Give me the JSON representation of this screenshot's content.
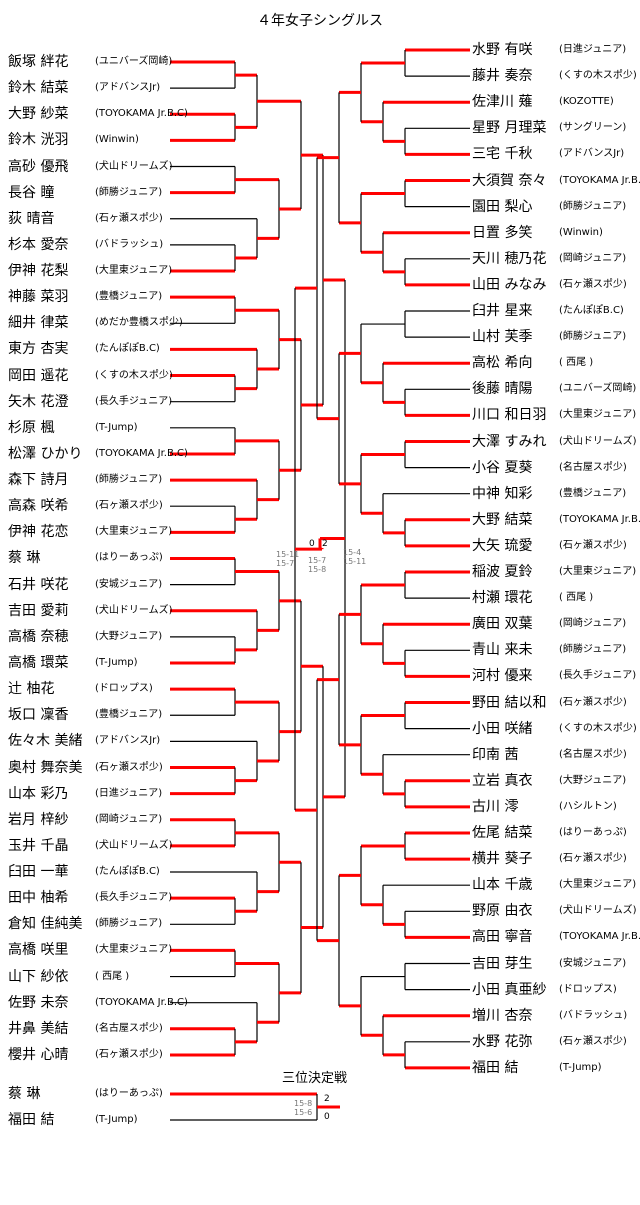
{
  "title": "４年女子シングルス",
  "colors": {
    "winner_line": "#ff0000",
    "line": "#000000"
  },
  "left": [
    {
      "name": "飯塚 絆花",
      "club": "(ユニバーズ岡崎)",
      "red": true
    },
    {
      "name": "鈴木 結菜",
      "club": "(アドバンスJr)",
      "red": false
    },
    {
      "name": "大野 紗菜",
      "club": "(TOYOKAMA Jr.B.C)",
      "red": true
    },
    {
      "name": "鈴木 洸羽",
      "club": "(Winwin)",
      "red": true
    },
    {
      "name": "高砂 優飛",
      "club": "(犬山ドリームズ)",
      "red": false
    },
    {
      "name": "長谷 瞳",
      "club": "(師勝ジュニア)",
      "red": true
    },
    {
      "name": "荻 晴音",
      "club": "(石ヶ瀬スポ少)",
      "red": false
    },
    {
      "name": "杉本 愛奈",
      "club": "(バドラッシュ)",
      "red": false
    },
    {
      "name": "伊神 花梨",
      "club": "(大里東ジュニア)",
      "red": true
    },
    {
      "name": "神藤 菜羽",
      "club": "(豊橋ジュニア)",
      "red": true
    },
    {
      "name": "細井 律菜",
      "club": "(めだか豊橋スポ少)",
      "red": false
    },
    {
      "name": "東方 杏実",
      "club": "(たんぽぽB.C)",
      "red": true
    },
    {
      "name": "岡田 遥花",
      "club": "(くすの木スポ少)",
      "red": true
    },
    {
      "name": "矢木 花澄",
      "club": "(長久手ジュニア)",
      "red": false
    },
    {
      "name": "杉原 楓",
      "club": "(T-Jump)",
      "red": false
    },
    {
      "name": "松澤 ひかり",
      "club": "(TOYOKAMA Jr.B.C)",
      "red": true
    },
    {
      "name": "森下 詩月",
      "club": "(師勝ジュニア)",
      "red": true
    },
    {
      "name": "高森 咲希",
      "club": "(石ヶ瀬スポ少)",
      "red": false
    },
    {
      "name": "伊神 花恋",
      "club": "(大里東ジュニア)",
      "red": true
    },
    {
      "name": "蔡 琳",
      "club": "(はりーあっぷ)",
      "red": true
    },
    {
      "name": "石井 咲花",
      "club": "(安城ジュニア)",
      "red": false
    },
    {
      "name": "吉田 愛莉",
      "club": "(犬山ドリームズ)",
      "red": true
    },
    {
      "name": "高橋 奈穂",
      "club": "(大野ジュニア)",
      "red": false
    },
    {
      "name": "高橋 環菜",
      "club": "(T-Jump)",
      "red": true
    },
    {
      "name": "辻 柚花",
      "club": "(ドロップス)",
      "red": true
    },
    {
      "name": "坂口 凜香",
      "club": "(豊橋ジュニア)",
      "red": false
    },
    {
      "name": "佐々木 美緒",
      "club": "(アドバンスJr)",
      "red": false
    },
    {
      "name": "奥村 舞奈美",
      "club": "(石ヶ瀬スポ少)",
      "red": true
    },
    {
      "name": "山本 彩乃",
      "club": "(日進ジュニア)",
      "red": true
    },
    {
      "name": "岩月 梓紗",
      "club": "(岡崎ジュニア)",
      "red": true
    },
    {
      "name": "玉井 千晶",
      "club": "(犬山ドリームズ)",
      "red": true
    },
    {
      "name": "臼田 一華",
      "club": "(たんぽぽB.C)",
      "red": false
    },
    {
      "name": "田中 柚希",
      "club": "(長久手ジュニア)",
      "red": true
    },
    {
      "name": "倉知 佳純美",
      "club": "(師勝ジュニア)",
      "red": false
    },
    {
      "name": "高橋 咲里",
      "club": "(大里東ジュニア)",
      "red": true
    },
    {
      "name": "山下 紗依",
      "club": "( 西尾 )",
      "red": false
    },
    {
      "name": "佐野 未奈",
      "club": "(TOYOKAMA Jr.B.C)",
      "red": false
    },
    {
      "name": "井鼻 美結",
      "club": "(名古屋スポ少)",
      "red": true
    },
    {
      "name": "櫻井 心晴",
      "club": "(石ヶ瀬スポ少)",
      "red": true
    }
  ],
  "right": [
    {
      "name": "水野 有咲",
      "club": "(日進ジュニア)",
      "red": true
    },
    {
      "name": "藤井 奏奈",
      "club": "(くすの木スポ少)",
      "red": false
    },
    {
      "name": "佐津川 薙",
      "club": "(KOZOTTE)",
      "red": true
    },
    {
      "name": "星野 月理菜",
      "club": "(サングリーン)",
      "red": false
    },
    {
      "name": "三宅 千秋",
      "club": "(アドバンスJr)",
      "red": true
    },
    {
      "name": "大須賀 奈々",
      "club": "(TOYOKAMA Jr.B.C)",
      "red": true
    },
    {
      "name": "園田 梨心",
      "club": "(師勝ジュニア)",
      "red": false
    },
    {
      "name": "日置 多笑",
      "club": "(Winwin)",
      "red": true
    },
    {
      "name": "天川 穂乃花",
      "club": "(岡崎ジュニア)",
      "red": false
    },
    {
      "name": "山田 みなみ",
      "club": "(石ヶ瀬スポ少)",
      "red": true
    },
    {
      "name": "臼井 星来",
      "club": "(たんぽぽB.C)",
      "red": false
    },
    {
      "name": "山村 芙季",
      "club": "(師勝ジュニア)",
      "red": false
    },
    {
      "name": "高松 希向",
      "club": "( 西尾 )",
      "red": true
    },
    {
      "name": "後藤 晴陽",
      "club": "(ユニバーズ岡崎)",
      "red": false
    },
    {
      "name": "川口 和日羽",
      "club": "(大里東ジュニア)",
      "red": true
    },
    {
      "name": "大澤 すみれ",
      "club": "(犬山ドリームズ)",
      "red": true
    },
    {
      "name": "小谷 夏葵",
      "club": "(名古屋スポ少)",
      "red": false
    },
    {
      "name": "中神 知彩",
      "club": "(豊橋ジュニア)",
      "red": false
    },
    {
      "name": "大野 結菜",
      "club": "(TOYOKAMA Jr.B.C)",
      "red": true
    },
    {
      "name": "大矢 琉愛",
      "club": "(石ヶ瀬スポ少)",
      "red": true
    },
    {
      "name": "稲波 夏鈴",
      "club": "(大里東ジュニア)",
      "red": true
    },
    {
      "name": "村瀬 環花",
      "club": "( 西尾 )",
      "red": false
    },
    {
      "name": "廣田 双葉",
      "club": "(岡崎ジュニア)",
      "red": true
    },
    {
      "name": "青山 来未",
      "club": "(師勝ジュニア)",
      "red": false
    },
    {
      "name": "河村 優来",
      "club": "(長久手ジュニア)",
      "red": true
    },
    {
      "name": "野田 結以和",
      "club": "(石ヶ瀬スポ少)",
      "red": true
    },
    {
      "name": "小田 咲緒",
      "club": "(くすの木スポ少)",
      "red": false
    },
    {
      "name": "印南 茜",
      "club": "(名古屋スポ少)",
      "red": false
    },
    {
      "name": "立岩 真衣",
      "club": "(大野ジュニア)",
      "red": true
    },
    {
      "name": "古川 澪",
      "club": "(ハシルトン)",
      "red": true
    },
    {
      "name": "佐尾 結菜",
      "club": "(はりーあっぷ)",
      "red": true
    },
    {
      "name": "横井 葵子",
      "club": "(石ヶ瀬スポ少)",
      "red": true
    },
    {
      "name": "山本 千歳",
      "club": "(大里東ジュニア)",
      "red": false
    },
    {
      "name": "野原 由衣",
      "club": "(犬山ドリームズ)",
      "red": false
    },
    {
      "name": "高田 寧音",
      "club": "(TOYOKAMA Jr.B.C)",
      "red": true
    },
    {
      "name": "吉田 芽生",
      "club": "(安城ジュニア)",
      "red": false
    },
    {
      "name": "小田 真亜紗",
      "club": "(ドロップス)",
      "red": false
    },
    {
      "name": "増川 杏奈",
      "club": "(バドラッシュ)",
      "red": true
    },
    {
      "name": "水野 花弥",
      "club": "(石ヶ瀬スポ少)",
      "red": false
    },
    {
      "name": "福田 結",
      "club": "(T-Jump)",
      "red": true
    }
  ],
  "final": {
    "left_score": "0",
    "right_score": "2",
    "left_games": "15-11 15-7",
    "center_games": "15-7 15-8",
    "right_games": "15-4 15-11"
  },
  "third_place": {
    "title": "三位決定戦",
    "players": [
      {
        "name": "蔡 琳",
        "club": "(はりーあっぷ)"
      },
      {
        "name": "福田 結",
        "club": "(T-Jump)"
      }
    ],
    "games": "15-8 15-6",
    "scores": [
      "2",
      "0"
    ]
  }
}
